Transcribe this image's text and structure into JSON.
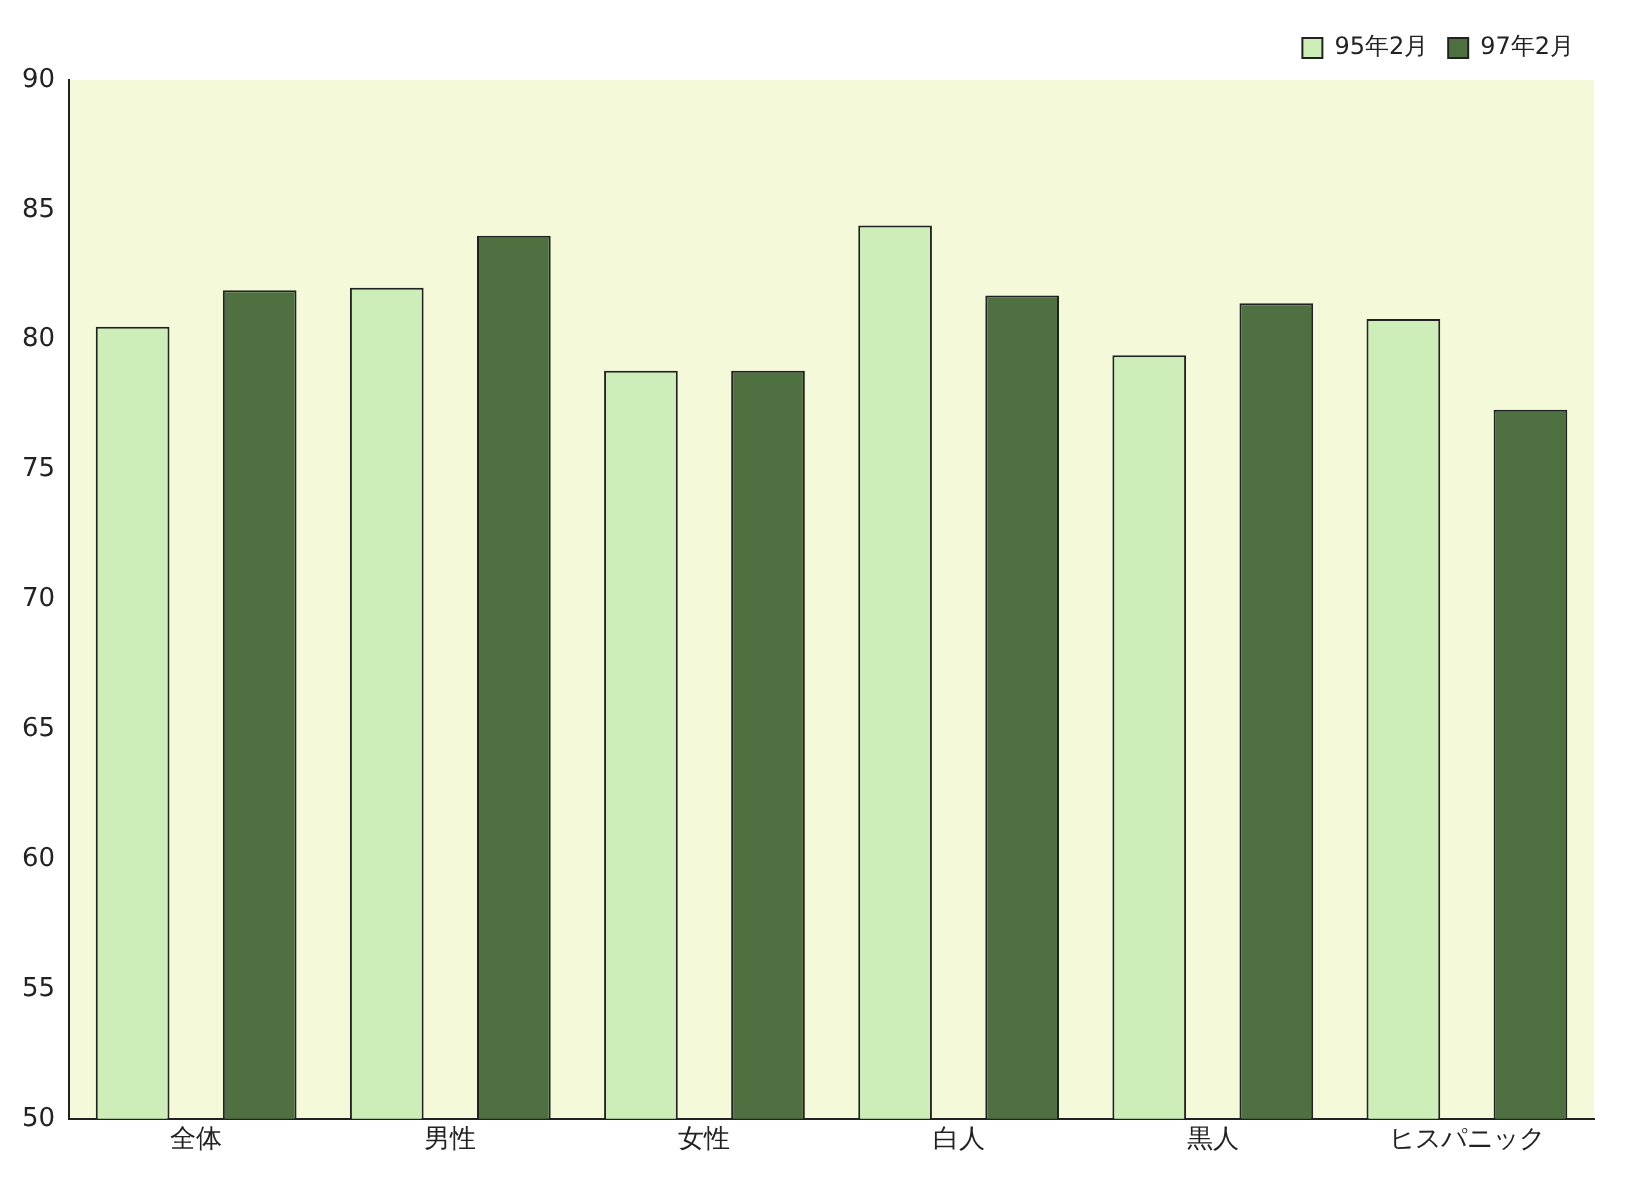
{
  "chart_data": {
    "type": "bar",
    "categories": [
      "全体",
      "男性",
      "女性",
      "白人",
      "黒人",
      "ヒスパニック"
    ],
    "series": [
      {
        "name": "95年2月",
        "color": "#cdeeb8",
        "values": [
          80.5,
          82.0,
          78.8,
          84.4,
          79.4,
          80.8
        ]
      },
      {
        "name": "97年2月",
        "color": "#4f7040",
        "values": [
          81.9,
          84.0,
          78.8,
          81.7,
          81.4,
          77.3
        ]
      }
    ],
    "ylim": [
      50,
      90
    ],
    "yticks": [
      50,
      55,
      60,
      65,
      70,
      75,
      80,
      85,
      90
    ],
    "grid": false,
    "legend": "top right"
  }
}
